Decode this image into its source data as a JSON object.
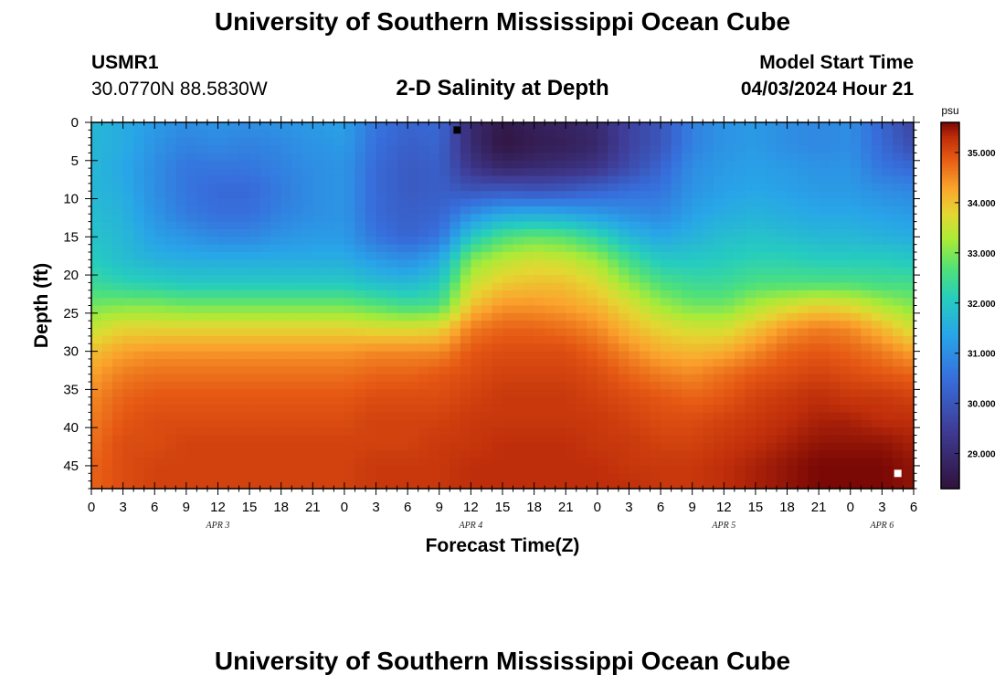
{
  "header": {
    "title": "University of Southern Mississippi Ocean Cube",
    "station_id": "USMR1",
    "station_coords": "30.0770N  88.5830W",
    "plot_subtitle": "2-D Salinity at Depth",
    "model_start_label": "Model Start Time",
    "model_start_value": "04/03/2024 Hour 21"
  },
  "footer": {
    "title": "University of Southern Mississippi Ocean Cube"
  },
  "chart_data": {
    "type": "heatmap",
    "title": "2-D Salinity at Depth",
    "xlabel": "Forecast Time(Z)",
    "ylabel": "Depth (ft)",
    "x_range_hours": [
      0,
      78
    ],
    "y_range_ft": [
      0,
      48
    ],
    "x_tick_values_hours": [
      0,
      3,
      6,
      9,
      12,
      15,
      18,
      21,
      24,
      27,
      30,
      33,
      36,
      39,
      42,
      45,
      48,
      51,
      54,
      57,
      60,
      63,
      66,
      69,
      72,
      75,
      78
    ],
    "x_tick_labels": [
      "0",
      "3",
      "6",
      "9",
      "12",
      "15",
      "18",
      "21",
      "0",
      "3",
      "6",
      "9",
      "12",
      "15",
      "18",
      "21",
      "0",
      "3",
      "6",
      "9",
      "12",
      "15",
      "18",
      "21",
      "0",
      "3",
      "6"
    ],
    "y_tick_values": [
      0,
      5,
      10,
      15,
      20,
      25,
      30,
      35,
      40,
      45
    ],
    "y_tick_labels": [
      "0",
      "5",
      "10",
      "15",
      "20",
      "25",
      "30",
      "35",
      "40",
      "45"
    ],
    "day_labels": [
      {
        "text": "APR 3",
        "hour": 12
      },
      {
        "text": "APR 4",
        "hour": 36
      },
      {
        "text": "APR 5",
        "hour": 60
      },
      {
        "text": "APR 6",
        "hour": 75
      }
    ],
    "colorbar": {
      "unit": "psu",
      "min": 28.3,
      "max": 35.6,
      "tick_values": [
        29,
        30,
        31,
        32,
        33,
        34,
        35
      ],
      "tick_labels": [
        "29.000",
        "30.000",
        "31.000",
        "32.000",
        "33.000",
        "34.000",
        "35.000"
      ]
    },
    "markers": [
      {
        "label": "min salinity",
        "hour": 34.7,
        "depth_ft": 1,
        "color": "#000000"
      },
      {
        "label": "max salinity",
        "hour": 76.5,
        "depth_ft": 46,
        "color": "#ffffff"
      }
    ],
    "grid_hours": [
      0,
      3,
      6,
      9,
      12,
      15,
      18,
      21,
      24,
      27,
      30,
      33,
      36,
      39,
      42,
      45,
      48,
      51,
      54,
      57,
      60,
      63,
      66,
      69,
      72,
      75,
      78
    ],
    "grid_depths_ft": [
      0,
      3,
      6,
      9,
      12,
      15,
      18,
      21,
      24,
      27,
      30,
      33,
      36,
      39,
      42,
      45,
      48
    ],
    "salinity_psu": [
      [
        31.7,
        31.5,
        31.2,
        31.0,
        31.1,
        31.0,
        31.1,
        31.2,
        31.3,
        30.6,
        30.3,
        30.4,
        29.0,
        28.5,
        28.7,
        28.8,
        29.0,
        29.6,
        30.0,
        30.8,
        31.1,
        31.2,
        31.0,
        30.9,
        31.0,
        30.3,
        29.6
      ],
      [
        31.7,
        31.5,
        31.1,
        30.8,
        30.9,
        30.8,
        30.9,
        31.1,
        31.2,
        30.5,
        30.2,
        30.3,
        29.0,
        28.4,
        28.6,
        28.7,
        28.9,
        29.6,
        30.0,
        30.8,
        31.1,
        31.2,
        31.0,
        30.9,
        31.0,
        30.4,
        29.8
      ],
      [
        31.7,
        31.4,
        31.0,
        30.6,
        30.6,
        30.6,
        30.8,
        31.0,
        31.1,
        30.4,
        30.1,
        30.2,
        29.3,
        28.9,
        29.0,
        29.1,
        29.3,
        29.8,
        30.3,
        31.0,
        31.2,
        31.3,
        31.2,
        31.1,
        31.1,
        30.6,
        30.4
      ],
      [
        31.7,
        31.5,
        31.0,
        30.6,
        30.4,
        30.4,
        30.7,
        31.0,
        31.1,
        30.4,
        30.1,
        30.2,
        30.0,
        30.1,
        30.0,
        30.1,
        30.3,
        30.5,
        30.6,
        31.1,
        31.3,
        31.4,
        31.3,
        31.2,
        31.2,
        31.0,
        30.9
      ],
      [
        31.8,
        31.6,
        31.1,
        30.7,
        30.5,
        30.5,
        30.8,
        31.0,
        31.1,
        30.4,
        30.2,
        30.3,
        31.0,
        31.4,
        31.5,
        31.4,
        31.2,
        31.0,
        30.9,
        31.3,
        31.5,
        31.6,
        31.5,
        31.4,
        31.4,
        31.3,
        31.2
      ],
      [
        31.9,
        31.7,
        31.3,
        31.1,
        30.9,
        30.9,
        31.1,
        31.2,
        31.2,
        30.6,
        30.3,
        30.6,
        32.0,
        32.6,
        32.8,
        32.7,
        32.3,
        31.7,
        31.4,
        31.6,
        31.8,
        31.9,
        31.8,
        31.7,
        31.7,
        31.6,
        31.5
      ],
      [
        32.1,
        31.8,
        31.6,
        31.5,
        31.5,
        31.5,
        31.5,
        31.5,
        31.5,
        31.2,
        31.0,
        31.4,
        33.0,
        33.4,
        33.6,
        33.5,
        33.2,
        32.5,
        32.0,
        32.0,
        32.1,
        32.2,
        32.2,
        32.1,
        32.1,
        32.1,
        32.0
      ],
      [
        32.4,
        32.2,
        32.1,
        32.0,
        32.0,
        32.0,
        32.0,
        32.0,
        32.0,
        31.8,
        31.7,
        32.0,
        33.5,
        33.9,
        34.0,
        34.0,
        33.7,
        33.1,
        32.6,
        32.4,
        32.4,
        32.6,
        32.6,
        32.6,
        32.6,
        32.5,
        32.5
      ],
      [
        32.9,
        33.0,
        33.0,
        32.9,
        32.9,
        32.9,
        32.9,
        32.9,
        32.9,
        32.7,
        32.5,
        32.6,
        34.0,
        34.4,
        34.4,
        34.3,
        34.1,
        33.7,
        33.2,
        32.9,
        32.9,
        33.3,
        33.6,
        33.8,
        33.7,
        33.3,
        33.0
      ],
      [
        33.5,
        33.8,
        33.8,
        33.8,
        33.8,
        33.8,
        33.8,
        33.8,
        33.8,
        33.7,
        33.7,
        33.8,
        34.6,
        34.8,
        34.8,
        34.7,
        34.5,
        34.1,
        33.8,
        33.6,
        33.6,
        34.0,
        34.4,
        34.6,
        34.5,
        34.1,
        33.6
      ],
      [
        34.0,
        34.3,
        34.4,
        34.4,
        34.4,
        34.4,
        34.4,
        34.4,
        34.4,
        34.5,
        34.5,
        34.5,
        34.9,
        35.0,
        35.0,
        35.0,
        34.8,
        34.5,
        34.2,
        34.1,
        34.2,
        34.5,
        34.8,
        34.9,
        34.8,
        34.6,
        34.3
      ],
      [
        34.3,
        34.6,
        34.7,
        34.7,
        34.7,
        34.7,
        34.7,
        34.7,
        34.7,
        34.8,
        34.8,
        34.9,
        35.0,
        35.1,
        35.1,
        35.1,
        35.0,
        34.8,
        34.6,
        34.5,
        34.7,
        34.9,
        35.0,
        35.1,
        35.0,
        34.9,
        34.8
      ],
      [
        34.5,
        34.8,
        34.9,
        34.9,
        34.9,
        34.9,
        34.9,
        34.9,
        34.9,
        35.0,
        35.0,
        35.0,
        35.1,
        35.2,
        35.2,
        35.2,
        35.1,
        35.0,
        34.9,
        34.8,
        34.9,
        35.1,
        35.2,
        35.3,
        35.2,
        35.2,
        35.1
      ],
      [
        34.6,
        34.9,
        35.0,
        35.0,
        35.0,
        35.0,
        35.0,
        35.0,
        35.0,
        35.1,
        35.1,
        35.1,
        35.2,
        35.2,
        35.2,
        35.2,
        35.2,
        35.1,
        35.0,
        35.0,
        35.1,
        35.2,
        35.3,
        35.4,
        35.4,
        35.3,
        35.3
      ],
      [
        34.7,
        35.0,
        35.0,
        35.1,
        35.1,
        35.1,
        35.1,
        35.1,
        35.1,
        35.1,
        35.1,
        35.2,
        35.2,
        35.3,
        35.3,
        35.3,
        35.2,
        35.2,
        35.1,
        35.1,
        35.2,
        35.3,
        35.4,
        35.5,
        35.5,
        35.5,
        35.4
      ],
      [
        34.8,
        35.0,
        35.1,
        35.1,
        35.1,
        35.1,
        35.1,
        35.1,
        35.1,
        35.2,
        35.2,
        35.2,
        35.3,
        35.3,
        35.3,
        35.3,
        35.3,
        35.2,
        35.2,
        35.2,
        35.3,
        35.4,
        35.5,
        35.6,
        35.6,
        35.6,
        35.5
      ],
      [
        34.8,
        35.0,
        35.1,
        35.1,
        35.1,
        35.1,
        35.1,
        35.1,
        35.1,
        35.2,
        35.2,
        35.2,
        35.3,
        35.3,
        35.3,
        35.3,
        35.3,
        35.3,
        35.2,
        35.2,
        35.3,
        35.4,
        35.5,
        35.6,
        35.6,
        35.6,
        35.5
      ]
    ]
  }
}
